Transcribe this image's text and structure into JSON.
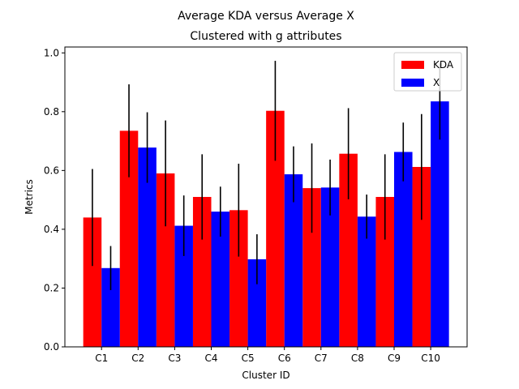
{
  "chart_data": {
    "type": "bar",
    "title": "Average KDA versus Average X",
    "subtitle": "Clustered with g attributes",
    "xlabel": "Cluster ID",
    "ylabel": "Metrics",
    "ylim": [
      0,
      1.02
    ],
    "yticks": [
      "0.0",
      "0.2",
      "0.4",
      "0.6",
      "0.8",
      "1.0"
    ],
    "categories": [
      "C1",
      "C2",
      "C3",
      "C4",
      "C5",
      "C6",
      "C7",
      "C8",
      "C9",
      "C10"
    ],
    "series": [
      {
        "name": "KDA",
        "color": "#ff0000",
        "values": [
          0.44,
          0.735,
          0.59,
          0.51,
          0.465,
          0.803,
          0.54,
          0.657,
          0.51,
          0.612
        ],
        "errors": [
          0.165,
          0.158,
          0.18,
          0.145,
          0.158,
          0.17,
          0.152,
          0.155,
          0.145,
          0.18
        ]
      },
      {
        "name": "X",
        "color": "#0000ff",
        "values": [
          0.268,
          0.678,
          0.412,
          0.46,
          0.298,
          0.587,
          0.542,
          0.443,
          0.663,
          0.835
        ],
        "errors": [
          0.075,
          0.12,
          0.103,
          0.085,
          0.085,
          0.095,
          0.095,
          0.075,
          0.1,
          0.13
        ]
      }
    ],
    "legend": "top-right",
    "grid": false
  }
}
